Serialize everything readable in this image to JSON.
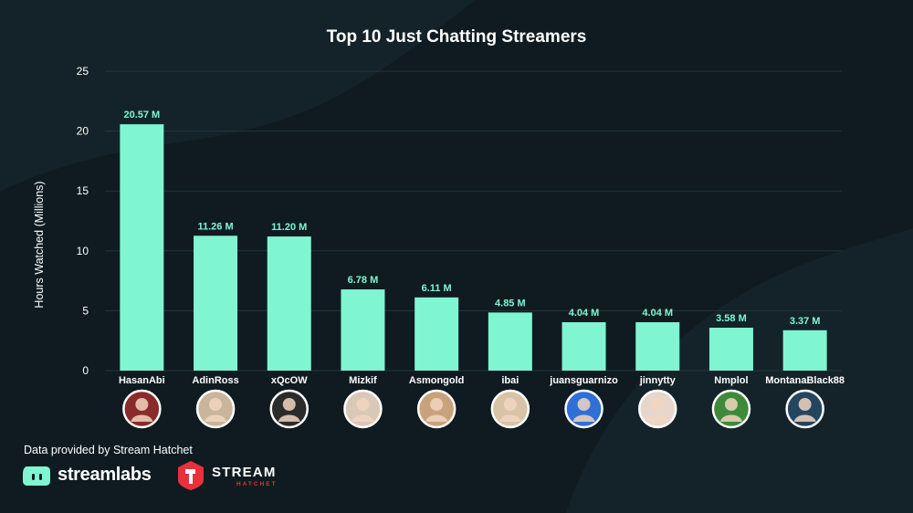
{
  "colors": {
    "background": "#0f1b21",
    "bar": "#80f5d2",
    "value_label": "#80f5d2",
    "gridline": "#24343b",
    "streamlabs_brand": "#80f5d2",
    "stream_hatchet_brand": "#e8313b"
  },
  "header": {
    "title": "Top 10 Just Chatting Streamers"
  },
  "footer": {
    "credit": "Data provided by Stream Hatchet",
    "streamlabs_logo_text": "streamlabs",
    "stream_hatchet_logo_text": "STREAM",
    "stream_hatchet_logo_subtext": "HATCHET"
  },
  "chart_data": {
    "type": "bar",
    "title": "Top 10 Just Chatting Streamers",
    "xlabel": "",
    "ylabel": "Hours Watched (Millions)",
    "ylim": [
      0,
      25
    ],
    "yticks": [
      0,
      5,
      10,
      15,
      20,
      25
    ],
    "grid": true,
    "categories": [
      "HasanAbi",
      "AdinRoss",
      "xQcOW",
      "Mizkif",
      "Asmongold",
      "ibai",
      "juansguarnizo",
      "jinnytty",
      "Nmplol",
      "MontanaBlack88"
    ],
    "values": [
      20.57,
      11.26,
      11.2,
      6.78,
      6.11,
      4.85,
      4.04,
      4.04,
      3.58,
      3.37
    ],
    "data_labels": [
      "20.57 M",
      "11.26 M",
      "11.20 M",
      "6.78 M",
      "6.11 M",
      "4.85 M",
      "4.04 M",
      "4.04 M",
      "3.58 M",
      "3.37 M"
    ],
    "avatar_icons": [
      "avatar-hasanabi-icon",
      "avatar-adinross-icon",
      "avatar-xqcow-icon",
      "avatar-mizkif-icon",
      "avatar-asmongold-icon",
      "avatar-ibai-icon",
      "avatar-juansguarnizo-icon",
      "avatar-jinnytty-icon",
      "avatar-nmplol-icon",
      "avatar-montanablack88-icon"
    ],
    "avatar_colors": [
      "#8a2b2b",
      "#c9b59a",
      "#2b2b2b",
      "#d9c8b8",
      "#c8a27a",
      "#d8c3a6",
      "#2f6fd6",
      "#e7d6cc",
      "#3e8a3a",
      "#24455f"
    ]
  }
}
